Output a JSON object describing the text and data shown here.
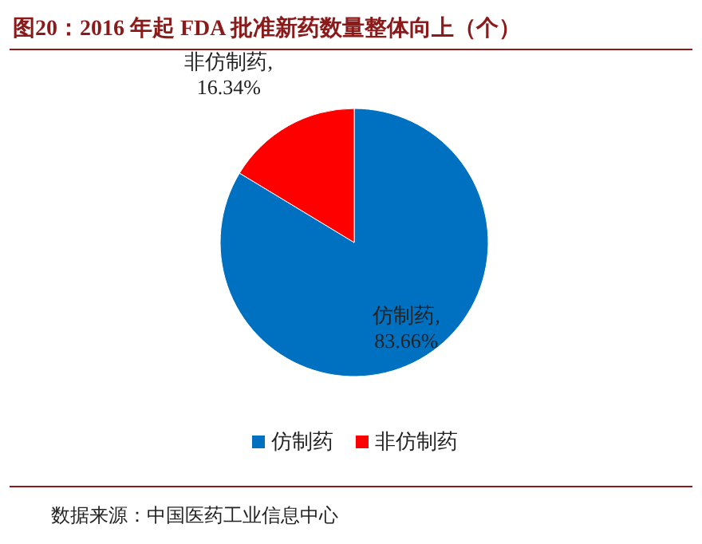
{
  "chart_data": {
    "type": "pie",
    "title": "图20：2016 年起 FDA 批准新药数量整体向上（个）",
    "categories": [
      "仿制药",
      "非仿制药"
    ],
    "values": [
      83.66,
      16.34
    ],
    "colors": [
      "#0070c0",
      "#ff0000"
    ],
    "value_labels": [
      "仿制药,\n83.66%",
      "非仿制药,\n16.34%"
    ],
    "legend": "bottom",
    "annotations": [
      "数据来源：中国医药工业信息中心"
    ]
  }
}
